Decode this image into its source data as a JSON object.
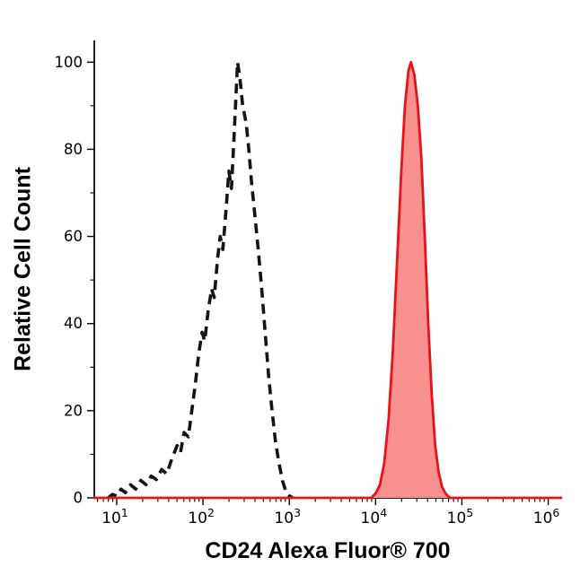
{
  "figure": {
    "background": "#ffffff"
  },
  "chart_data": {
    "type": "area",
    "subtype": "flow-cytometry-histogram-overlay",
    "title": "",
    "xlabel": "CD24 Alexa Fluor® 700",
    "ylabel": "Relative Cell Count",
    "x_scale": "log10",
    "x_range_exponents": [
      0.74,
      6.15
    ],
    "y_range": [
      0,
      105
    ],
    "x_major_ticks_exponents": [
      1,
      2,
      3,
      4,
      5,
      6
    ],
    "x_tick_base": "10",
    "y_major_ticks": [
      0,
      20,
      40,
      60,
      80,
      100
    ],
    "y_minor_step": 10,
    "grid": false,
    "legend": "none",
    "axis_color": "#000000",
    "series": [
      {
        "name": "black-dashed-histogram",
        "line_style": "dashed",
        "stroke": "#141414",
        "stroke_width": 3.6,
        "dash": [
          11,
          7
        ],
        "fill": "none",
        "baseline_full_width": false,
        "peak_log10x": 2.4,
        "peak_y": 100,
        "points_log10x_y": [
          [
            0.9,
            0
          ],
          [
            0.95,
            0.8
          ],
          [
            1.0,
            0.4
          ],
          [
            1.05,
            2
          ],
          [
            1.1,
            1.2
          ],
          [
            1.16,
            3
          ],
          [
            1.22,
            2
          ],
          [
            1.28,
            4
          ],
          [
            1.34,
            3
          ],
          [
            1.4,
            5
          ],
          [
            1.46,
            4.2
          ],
          [
            1.52,
            6.5
          ],
          [
            1.58,
            5.5
          ],
          [
            1.64,
            9
          ],
          [
            1.7,
            12
          ],
          [
            1.74,
            10.5
          ],
          [
            1.78,
            15
          ],
          [
            1.83,
            14
          ],
          [
            1.87,
            20
          ],
          [
            1.91,
            26
          ],
          [
            1.95,
            33
          ],
          [
            1.99,
            38
          ],
          [
            2.02,
            36
          ],
          [
            2.06,
            43
          ],
          [
            2.1,
            48
          ],
          [
            2.13,
            46
          ],
          [
            2.17,
            55
          ],
          [
            2.2,
            60
          ],
          [
            2.23,
            57
          ],
          [
            2.27,
            67
          ],
          [
            2.3,
            75
          ],
          [
            2.33,
            71
          ],
          [
            2.36,
            83
          ],
          [
            2.4,
            100
          ],
          [
            2.43,
            96
          ],
          [
            2.46,
            90
          ],
          [
            2.5,
            86
          ],
          [
            2.53,
            80
          ],
          [
            2.56,
            73
          ],
          [
            2.6,
            65
          ],
          [
            2.64,
            57
          ],
          [
            2.68,
            48
          ],
          [
            2.72,
            38
          ],
          [
            2.76,
            28
          ],
          [
            2.8,
            20
          ],
          [
            2.84,
            13
          ],
          [
            2.88,
            8
          ],
          [
            2.92,
            4
          ],
          [
            2.96,
            1.5
          ],
          [
            3.0,
            0.5
          ],
          [
            3.04,
            0
          ]
        ]
      },
      {
        "name": "red-filled-histogram",
        "line_style": "solid",
        "stroke": "#e8121a",
        "stroke_width": 2.8,
        "fill": "#f8908e",
        "baseline_full_width": true,
        "peak_log10x": 4.41,
        "peak_y": 100,
        "points_log10x_y": [
          [
            3.95,
            0
          ],
          [
            4.0,
            1
          ],
          [
            4.05,
            3
          ],
          [
            4.1,
            8
          ],
          [
            4.15,
            18
          ],
          [
            4.2,
            34
          ],
          [
            4.25,
            55
          ],
          [
            4.3,
            76
          ],
          [
            4.34,
            90
          ],
          [
            4.38,
            98
          ],
          [
            4.41,
            100
          ],
          [
            4.45,
            97
          ],
          [
            4.49,
            90
          ],
          [
            4.53,
            78
          ],
          [
            4.57,
            60
          ],
          [
            4.61,
            40
          ],
          [
            4.65,
            24
          ],
          [
            4.69,
            12
          ],
          [
            4.73,
            6
          ],
          [
            4.77,
            2.5
          ],
          [
            4.81,
            1
          ],
          [
            4.86,
            0
          ]
        ]
      }
    ]
  }
}
